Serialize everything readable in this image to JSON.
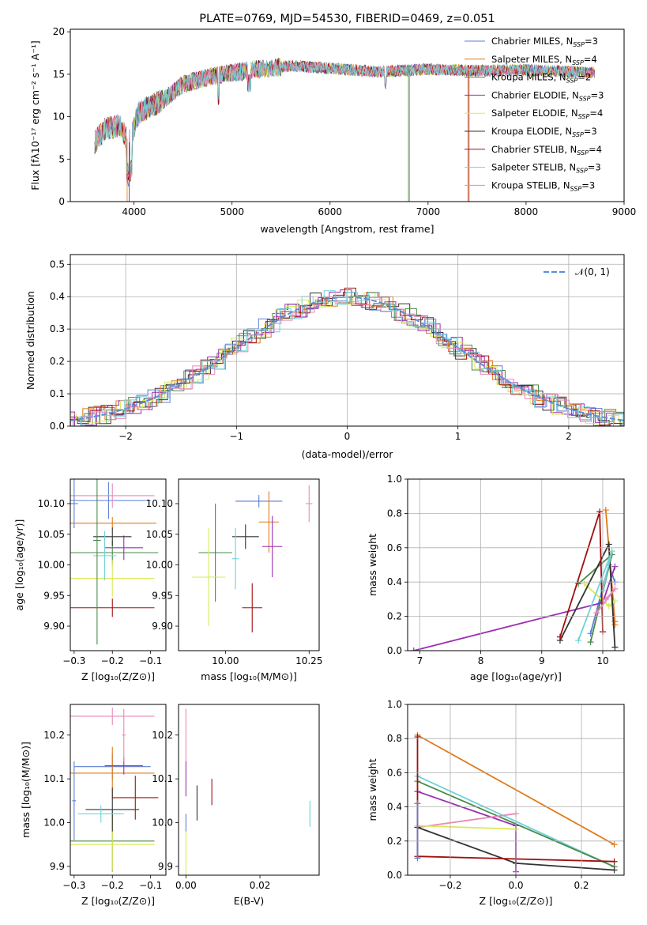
{
  "figure_title": "PLATE=0769, MJD=54530, FIBERID=0469, z=0.051",
  "colors": [
    "#5a7fd4",
    "#e07b1d",
    "#4a8a4a",
    "#9b2fb0",
    "#d9e85a",
    "#333333",
    "#a01010",
    "#6fd2d8",
    "#e889b8"
  ],
  "chart_data": [
    {
      "id": "spectrum",
      "type": "line",
      "title": "PLATE=0769, MJD=54530, FIBERID=0469, z=0.051",
      "xlabel": "wavelength [Angstrom, rest frame]",
      "ylabel": "Flux [fλ10⁻¹⁷ erg cm⁻² s⁻¹ A⁻¹]",
      "xlim": [
        3350,
        9000
      ],
      "ylim": [
        0,
        20.3
      ],
      "xticks": [
        "4000",
        "5000",
        "6000",
        "7000",
        "8000",
        "9000"
      ],
      "yticks": [
        "0",
        "5",
        "10",
        "15",
        "20"
      ],
      "legend_position": "top-right",
      "legend": [
        {
          "name": "Chabrier MILES, N",
          "sub": "SSP",
          "tail": "=3",
          "color": "#5a7fd4"
        },
        {
          "name": "Salpeter MILES, N",
          "sub": "SSP",
          "tail": "=4",
          "color": "#e07b1d"
        },
        {
          "name": "Kroupa MILES, N",
          "sub": "SSP",
          "tail": "=2",
          "color": "#4a8a4a"
        },
        {
          "name": "Chabrier ELODIE, N",
          "sub": "SSP",
          "tail": "=3",
          "color": "#9b2fb0"
        },
        {
          "name": "Salpeter ELODIE, N",
          "sub": "SSP",
          "tail": "=4",
          "color": "#d9e85a"
        },
        {
          "name": "Kroupa ELODIE, N",
          "sub": "SSP",
          "tail": "=3",
          "color": "#333333"
        },
        {
          "name": "Chabrier STELIB, N",
          "sub": "SSP",
          "tail": "=4",
          "color": "#a01010"
        },
        {
          "name": "Salpeter STELIB, N",
          "sub": "SSP",
          "tail": "=3",
          "color": "#6fd2d8"
        },
        {
          "name": "Kroupa STELIB, N",
          "sub": "SSP",
          "tail": "=3",
          "color": "#e889b8"
        }
      ],
      "continuum": [
        [
          3600,
          7
        ],
        [
          3700,
          8.5
        ],
        [
          3850,
          9
        ],
        [
          3950,
          7
        ],
        [
          4050,
          10.5
        ],
        [
          4300,
          12
        ],
        [
          4500,
          13.8
        ],
        [
          4800,
          14.8
        ],
        [
          5200,
          15.5
        ],
        [
          5600,
          16
        ],
        [
          6000,
          15.7
        ],
        [
          6500,
          15.3
        ],
        [
          7000,
          15.6
        ],
        [
          7500,
          15.4
        ],
        [
          8000,
          15.5
        ],
        [
          8500,
          15.3
        ],
        [
          8700,
          15.2
        ]
      ]
    },
    {
      "id": "residual-hist",
      "type": "line",
      "xlabel": "(data-model)/error",
      "ylabel": "Normed distribution",
      "xlim": [
        -2.5,
        2.5
      ],
      "ylim": [
        0,
        0.53
      ],
      "xticks": [
        "−2",
        "−1",
        "0",
        "1",
        "2"
      ],
      "yticks": [
        "0.0",
        "0.1",
        "0.2",
        "0.3",
        "0.4",
        "0.5"
      ],
      "legend_position": "top-right",
      "legend_label": "𝒩(0, 1)",
      "bin_width": 0.1,
      "gaussian_color": "#5a8fd8"
    },
    {
      "id": "age-vs-z",
      "type": "scatter",
      "xlabel": "Z [log₁₀(Z/Z⊙)]",
      "ylabel": "age  [log₁₀(age/yr)]",
      "xlim": [
        -0.31,
        -0.06
      ],
      "ylim": [
        9.86,
        10.14
      ],
      "xticks": [
        {
          "v": -0.3,
          "t": "−0.3"
        },
        {
          "v": -0.2,
          "t": "−0.2"
        },
        {
          "v": -0.1,
          "t": "−0.1"
        }
      ],
      "yticks": [
        {
          "v": 9.9,
          "t": "9.90"
        },
        {
          "v": 9.95,
          "t": "9.95"
        },
        {
          "v": 10.0,
          "t": "10.00"
        },
        {
          "v": 10.05,
          "t": "10.05"
        },
        {
          "v": 10.1,
          "t": "10.10"
        }
      ],
      "points": [
        {
          "x": -0.21,
          "y": 10.105,
          "xerr": 0.11,
          "yerr": 0.03,
          "c": 0
        },
        {
          "x": -0.2,
          "y": 10.068,
          "xerr": 0.115,
          "yerr": 0.01,
          "c": 1
        },
        {
          "x": -0.2,
          "y": 10.02,
          "xerr": 0.12,
          "yerr": 0.02,
          "c": 2
        },
        {
          "x": -0.17,
          "y": 10.028,
          "xerr": 0.05,
          "yerr": 0.02,
          "c": 3
        },
        {
          "x": -0.2,
          "y": 9.978,
          "xerr": 0.11,
          "yerr": 0.03,
          "c": 4
        },
        {
          "x": -0.2,
          "y": 10.046,
          "xerr": 0.05,
          "yerr": 0.015,
          "c": 5
        },
        {
          "x": -0.2,
          "y": 9.93,
          "xerr": 0.11,
          "yerr": 0.015,
          "c": 6
        },
        {
          "x": -0.22,
          "y": 10.015,
          "xerr": 0.03,
          "yerr": 0.04,
          "c": 7
        },
        {
          "x": -0.2,
          "y": 10.113,
          "xerr": 0.11,
          "yerr": 0.02,
          "c": 8
        },
        {
          "x": -0.24,
          "y": 10.04,
          "xerr": 0.01,
          "yerr": 0.17,
          "c": 2
        },
        {
          "x": -0.3,
          "y": 10.1,
          "xerr": 0.01,
          "yerr": 0.04,
          "c": 0
        }
      ]
    },
    {
      "id": "age-vs-mass",
      "type": "scatter",
      "xlabel": "mass [log₁₀(M/M⊙)]",
      "xlim": [
        9.86,
        10.28
      ],
      "ylim": [
        9.86,
        10.14
      ],
      "xticks": [
        {
          "v": 10.0,
          "t": "10.00"
        },
        {
          "v": 10.25,
          "t": "10.25"
        }
      ],
      "yticks": [
        {
          "v": 9.9,
          "t": "9.90"
        },
        {
          "v": 9.95,
          "t": "9.95"
        },
        {
          "v": 10.0,
          "t": "10.00"
        },
        {
          "v": 10.05,
          "t": "10.05"
        },
        {
          "v": 10.1,
          "t": "10.10"
        }
      ],
      "points": [
        {
          "x": 10.1,
          "y": 10.104,
          "xerr": 0.07,
          "yerr": 0.01,
          "c": 0
        },
        {
          "x": 10.13,
          "y": 10.07,
          "xerr": 0.03,
          "yerr": 0.05,
          "c": 1
        },
        {
          "x": 9.97,
          "y": 10.02,
          "xerr": 0.05,
          "yerr": 0.08,
          "c": 2
        },
        {
          "x": 10.14,
          "y": 10.03,
          "xerr": 0.03,
          "yerr": 0.05,
          "c": 3
        },
        {
          "x": 9.95,
          "y": 9.98,
          "xerr": 0.05,
          "yerr": 0.08,
          "c": 4
        },
        {
          "x": 10.06,
          "y": 10.046,
          "xerr": 0.04,
          "yerr": 0.02,
          "c": 5
        },
        {
          "x": 10.08,
          "y": 9.93,
          "xerr": 0.03,
          "yerr": 0.04,
          "c": 6
        },
        {
          "x": 10.03,
          "y": 10.01,
          "xerr": 0.01,
          "yerr": 0.05,
          "c": 7
        },
        {
          "x": 10.25,
          "y": 10.1,
          "xerr": 0.01,
          "yerr": 0.03,
          "c": 8
        }
      ]
    },
    {
      "id": "weight-vs-age",
      "type": "line",
      "xlabel": "age  [log₁₀(age/yr)]",
      "ylabel": "mass weight",
      "xlim": [
        6.8,
        10.35
      ],
      "ylim": [
        0,
        1.0
      ],
      "xticks": [
        {
          "v": 7,
          "t": "7"
        },
        {
          "v": 8,
          "t": "8"
        },
        {
          "v": 9,
          "t": "9"
        },
        {
          "v": 10,
          "t": "10"
        }
      ],
      "yticks": [
        {
          "v": 0,
          "t": "0.0"
        },
        {
          "v": 0.2,
          "t": "0.2"
        },
        {
          "v": 0.4,
          "t": "0.4"
        },
        {
          "v": 0.6,
          "t": "0.6"
        },
        {
          "v": 0.8,
          "t": "0.8"
        },
        {
          "v": 1.0,
          "t": "1.0"
        }
      ],
      "series": [
        {
          "c": 0,
          "pts": [
            [
              9.8,
              0.1
            ],
            [
              10.1,
              0.5
            ],
            [
              10.2,
              0.4
            ]
          ]
        },
        {
          "c": 1,
          "pts": [
            [
              10.2,
              0.15
            ],
            [
              10.05,
              0.82
            ],
            [
              10.2,
              0.17
            ]
          ]
        },
        {
          "c": 2,
          "pts": [
            [
              9.6,
              0.39
            ],
            [
              10.15,
              0.56
            ],
            [
              9.8,
              0.05
            ]
          ]
        },
        {
          "c": 3,
          "pts": [
            [
              6.9,
              0.0
            ],
            [
              10.0,
              0.28
            ],
            [
              10.2,
              0.49
            ]
          ]
        },
        {
          "c": 4,
          "pts": [
            [
              9.7,
              0.39
            ],
            [
              10.1,
              0.26
            ],
            [
              10.2,
              0.29
            ]
          ]
        },
        {
          "c": 5,
          "pts": [
            [
              9.3,
              0.06
            ],
            [
              10.1,
              0.62
            ],
            [
              10.2,
              0.02
            ]
          ]
        },
        {
          "c": 6,
          "pts": [
            [
              9.3,
              0.08
            ],
            [
              9.95,
              0.81
            ],
            [
              10.0,
              0.11
            ]
          ]
        },
        {
          "c": 7,
          "pts": [
            [
              9.6,
              0.06
            ],
            [
              10.15,
              0.58
            ],
            [
              10.0,
              0.35
            ]
          ]
        },
        {
          "c": 8,
          "pts": [
            [
              9.9,
              0.22
            ],
            [
              10.2,
              0.36
            ],
            [
              10.05,
              0.3
            ]
          ]
        }
      ]
    },
    {
      "id": "mass-vs-z",
      "type": "scatter",
      "xlabel": "Z [log₁₀(Z/Z⊙)]",
      "ylabel": "mass [log₁₀(M/M⊙)]",
      "xlim": [
        -0.31,
        -0.06
      ],
      "ylim": [
        9.88,
        10.27
      ],
      "xticks": [
        {
          "v": -0.3,
          "t": "−0.3"
        },
        {
          "v": -0.2,
          "t": "−0.2"
        },
        {
          "v": -0.1,
          "t": "−0.1"
        }
      ],
      "yticks": [
        {
          "v": 9.9,
          "t": "9.9"
        },
        {
          "v": 10.0,
          "t": "10.0"
        },
        {
          "v": 10.1,
          "t": "10.1"
        },
        {
          "v": 10.2,
          "t": "10.2"
        }
      ],
      "points": [
        {
          "x": -0.2,
          "y": 10.128,
          "xerr": 0.1,
          "yerr": 0.03,
          "c": 0
        },
        {
          "x": -0.2,
          "y": 10.113,
          "xerr": 0.11,
          "yerr": 0.06,
          "c": 1
        },
        {
          "x": -0.2,
          "y": 9.958,
          "xerr": 0.11,
          "yerr": 0.07,
          "c": 2
        },
        {
          "x": -0.17,
          "y": 10.13,
          "xerr": 0.05,
          "yerr": 0.02,
          "c": 3
        },
        {
          "x": -0.2,
          "y": 9.95,
          "xerr": 0.11,
          "yerr": 0.06,
          "c": 4
        },
        {
          "x": -0.2,
          "y": 10.03,
          "xerr": 0.07,
          "yerr": 0.05,
          "c": 5
        },
        {
          "x": -0.14,
          "y": 10.057,
          "xerr": 0.06,
          "yerr": 0.05,
          "c": 6
        },
        {
          "x": -0.23,
          "y": 10.02,
          "xerr": 0.06,
          "yerr": 0.02,
          "c": 7
        },
        {
          "x": -0.2,
          "y": 10.243,
          "xerr": 0.11,
          "yerr": 0.02,
          "c": 8
        },
        {
          "x": -0.17,
          "y": 10.2,
          "xerr": 0.005,
          "yerr": 0.06,
          "c": 8
        },
        {
          "x": -0.3,
          "y": 10.05,
          "xerr": 0.005,
          "yerr": 0.09,
          "c": 0
        }
      ]
    },
    {
      "id": "mass-vs-ebv",
      "type": "scatter",
      "xlabel": "E(B-V)",
      "xlim": [
        -0.002,
        0.036
      ],
      "ylim": [
        9.88,
        10.27
      ],
      "xticks": [
        {
          "v": 0.0,
          "t": "0.00"
        },
        {
          "v": 0.02,
          "t": "0.02"
        }
      ],
      "yticks": [
        {
          "v": 9.9,
          "t": "9.9"
        },
        {
          "v": 10.0,
          "t": "10.0"
        },
        {
          "v": 10.1,
          "t": "10.1"
        },
        {
          "v": 10.2,
          "t": "10.2"
        }
      ],
      "points": [
        {
          "x": 0.0,
          "y": 10.2,
          "xerr": 0,
          "yerr": 0.06,
          "c": 8
        },
        {
          "x": 0.0,
          "y": 10.1,
          "xerr": 0,
          "yerr": 0.04,
          "c": 3
        },
        {
          "x": 0.0,
          "y": 9.93,
          "xerr": 0,
          "yerr": 0.05,
          "c": 4
        },
        {
          "x": 0.0,
          "y": 10.0,
          "xerr": 0,
          "yerr": 0.02,
          "c": 0
        },
        {
          "x": 0.003,
          "y": 10.045,
          "xerr": 0,
          "yerr": 0.04,
          "c": 5
        },
        {
          "x": 0.007,
          "y": 10.07,
          "xerr": 0,
          "yerr": 0.03,
          "c": 6
        },
        {
          "x": 0.0335,
          "y": 10.02,
          "xerr": 0,
          "yerr": 0.03,
          "c": 7
        }
      ]
    },
    {
      "id": "weight-vs-z",
      "type": "line",
      "xlabel": "Z [log₁₀(Z/Z⊙)]",
      "ylabel": "mass weight",
      "xlim": [
        -0.33,
        0.33
      ],
      "ylim": [
        0,
        1.0
      ],
      "xticks": [
        {
          "v": -0.2,
          "t": "−0.2"
        },
        {
          "v": 0.0,
          "t": "0.0"
        },
        {
          "v": 0.2,
          "t": "0.2"
        }
      ],
      "yticks": [
        {
          "v": 0,
          "t": "0.0"
        },
        {
          "v": 0.2,
          "t": "0.2"
        },
        {
          "v": 0.4,
          "t": "0.4"
        },
        {
          "v": 0.6,
          "t": "0.6"
        },
        {
          "v": 0.8,
          "t": "0.8"
        },
        {
          "v": 1.0,
          "t": "1.0"
        }
      ],
      "series": [
        {
          "c": 1,
          "pts": [
            [
              -0.3,
              0.82
            ],
            [
              0.3,
              0.18
            ]
          ]
        },
        {
          "c": 7,
          "pts": [
            [
              -0.3,
              0.58
            ],
            [
              0.3,
              0.05
            ]
          ]
        },
        {
          "c": 2,
          "pts": [
            [
              -0.3,
              0.55
            ],
            [
              0.3,
              0.05
            ]
          ]
        },
        {
          "c": 3,
          "pts": [
            [
              -0.3,
              0.49
            ],
            [
              0.0,
              0.29
            ],
            [
              0.0,
              0.02
            ]
          ]
        },
        {
          "c": 8,
          "pts": [
            [
              -0.3,
              0.28
            ],
            [
              0.0,
              0.36
            ]
          ]
        },
        {
          "c": 4,
          "pts": [
            [
              -0.3,
              0.29
            ],
            [
              0.0,
              0.27
            ]
          ]
        },
        {
          "c": 5,
          "pts": [
            [
              -0.3,
              0.28
            ],
            [
              0.0,
              0.07
            ],
            [
              0.3,
              0.03
            ]
          ]
        },
        {
          "c": 6,
          "pts": [
            [
              -0.3,
              0.81
            ],
            [
              -0.3,
              0.11
            ],
            [
              0.3,
              0.08
            ]
          ]
        },
        {
          "c": 0,
          "pts": [
            [
              -0.3,
              0.42
            ],
            [
              -0.3,
              0.1
            ]
          ]
        }
      ]
    }
  ]
}
